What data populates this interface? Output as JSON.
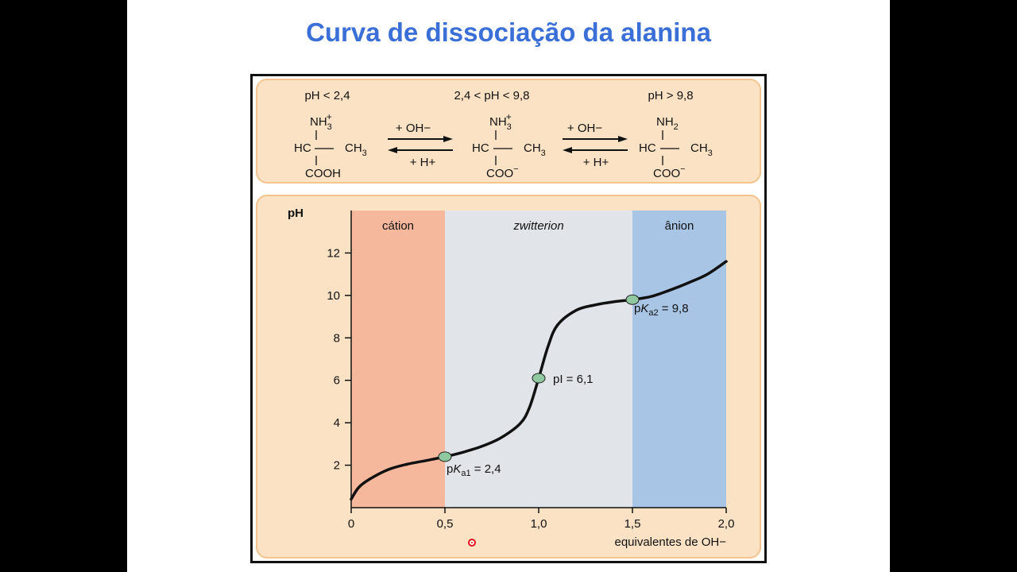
{
  "slide": {
    "title": "Curva de dissociação da alanina"
  },
  "equilibrium": {
    "ranges": [
      "pH < 2,4",
      "2,4 < pH < 9,8",
      "pH > 9,8"
    ],
    "species": [
      {
        "amino": "NH",
        "amino_sub": "3",
        "amino_sup": "+",
        "middle_left": "HC",
        "middle_right": "CH",
        "middle_right_sub": "3",
        "bottom": "COOH",
        "bottom_sup": ""
      },
      {
        "amino": "NH",
        "amino_sub": "3",
        "amino_sup": "+",
        "middle_left": "HC",
        "middle_right": "CH",
        "middle_right_sub": "3",
        "bottom": "COO",
        "bottom_sup": "−"
      },
      {
        "amino": "NH",
        "amino_sub": "2",
        "amino_sup": "",
        "middle_left": "HC",
        "middle_right": "CH",
        "middle_right_sub": "3",
        "bottom": "COO",
        "bottom_sup": "−"
      }
    ],
    "arrows": [
      {
        "forward": "+ OH−",
        "backward": "+ H+"
      },
      {
        "forward": "+ OH−",
        "backward": "+ H+"
      }
    ]
  },
  "chart_data": {
    "type": "line",
    "title": "",
    "ylabel": "pH",
    "xlabel": "equivalentes de OH−",
    "xlim": [
      0,
      2.0
    ],
    "ylim": [
      0,
      14
    ],
    "xticks": [
      {
        "value": 0,
        "label": "0"
      },
      {
        "value": 0.5,
        "label": "0,5"
      },
      {
        "value": 1.0,
        "label": "1,0"
      },
      {
        "value": 1.5,
        "label": "1,5"
      },
      {
        "value": 2.0,
        "label": "2,0"
      }
    ],
    "yticks": [
      2,
      4,
      6,
      8,
      10,
      12
    ],
    "regions": [
      {
        "label": "cátion",
        "x0": 0,
        "x1": 0.5,
        "color": "#f6b89c",
        "italic": false
      },
      {
        "label": "zwitterion",
        "x0": 0.5,
        "x1": 1.5,
        "color": "#e1e5ea",
        "italic": true
      },
      {
        "label": "ânion",
        "x0": 1.5,
        "x1": 2.0,
        "color": "#a9c5e6",
        "italic": false
      }
    ],
    "series": [
      {
        "color": "#111111",
        "points": [
          [
            0,
            0.4
          ],
          [
            0.04,
            0.95
          ],
          [
            0.1,
            1.35
          ],
          [
            0.2,
            1.8
          ],
          [
            0.3,
            2.05
          ],
          [
            0.4,
            2.22
          ],
          [
            0.5,
            2.4
          ],
          [
            0.6,
            2.62
          ],
          [
            0.7,
            2.9
          ],
          [
            0.8,
            3.3
          ],
          [
            0.9,
            3.95
          ],
          [
            0.95,
            4.7
          ],
          [
            1.0,
            6.1
          ],
          [
            1.05,
            7.6
          ],
          [
            1.1,
            8.6
          ],
          [
            1.2,
            9.3
          ],
          [
            1.3,
            9.55
          ],
          [
            1.4,
            9.7
          ],
          [
            1.5,
            9.8
          ],
          [
            1.6,
            9.95
          ],
          [
            1.7,
            10.25
          ],
          [
            1.8,
            10.6
          ],
          [
            1.9,
            11.0
          ],
          [
            2.0,
            11.6
          ]
        ]
      }
    ],
    "annotations": [
      {
        "x": 0.5,
        "y": 2.4,
        "label_prefix": "p",
        "label_italic": "K",
        "label_sub": "a1",
        "label_suffix": " = 2,4"
      },
      {
        "x": 1.0,
        "y": 6.1,
        "label_prefix": "pI = 6,1",
        "label_italic": "",
        "label_sub": "",
        "label_suffix": ""
      },
      {
        "x": 1.5,
        "y": 9.8,
        "label_prefix": "p",
        "label_italic": "K",
        "label_sub": "a2",
        "label_suffix": " = 9,8"
      }
    ],
    "marker_color": "#90c8a0"
  },
  "colors": {
    "title": "#3a6fd8",
    "panel": "#fbe2c4",
    "pointer": "#e0101a"
  }
}
